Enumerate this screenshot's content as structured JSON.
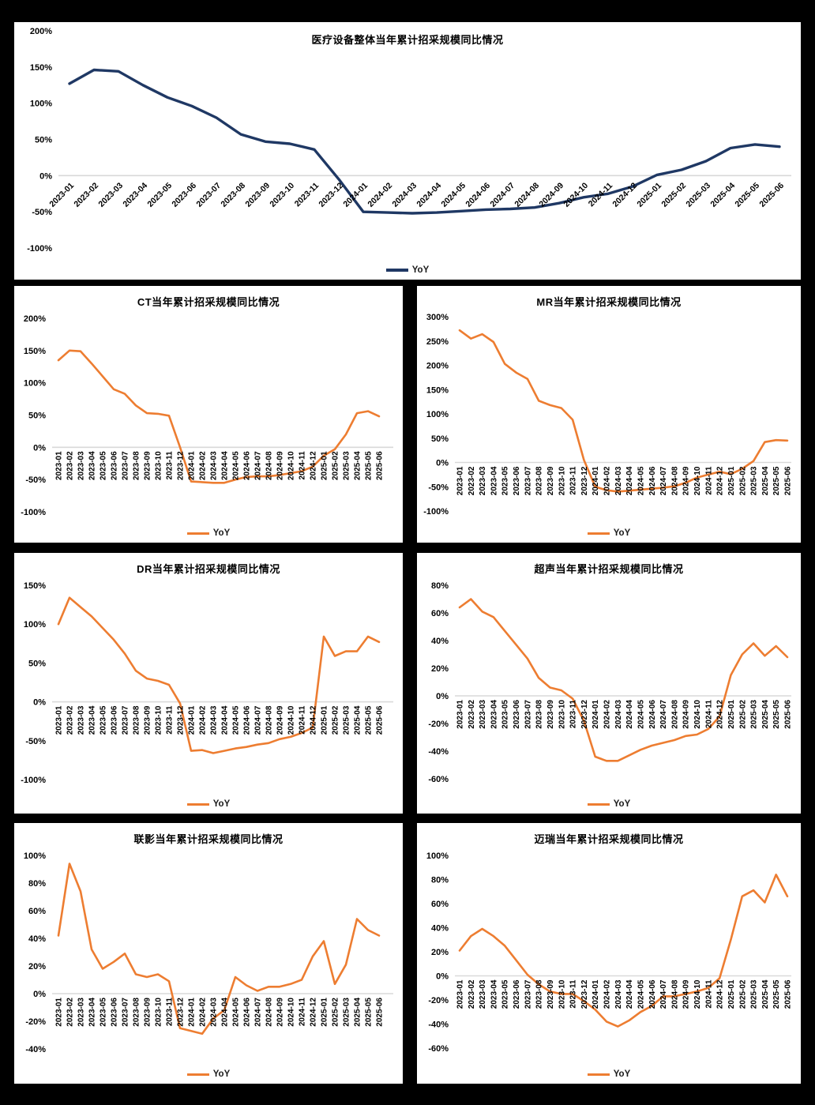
{
  "colors": {
    "page_background": "#000000",
    "panel_background": "#ffffff",
    "navy_line": "#1f3864",
    "orange_line": "#ed7d31",
    "gridline": "#d9d9d9",
    "text": "#000000"
  },
  "legend_label": "YoY",
  "chart_data": [
    {
      "type": "line",
      "title": "医疗设备整体当年累计招采规模同比情况",
      "legend_position": "bottom",
      "grid": "zero-line-only",
      "line_color": "#1f3864",
      "ylim": [
        -100,
        200
      ],
      "yticks": [
        200,
        150,
        100,
        50,
        0,
        -50,
        -100
      ],
      "ytick_suffix": "%",
      "categories": [
        "2023-01",
        "2023-02",
        "2023-03",
        "2023-04",
        "2023-05",
        "2023-06",
        "2023-07",
        "2023-08",
        "2023-09",
        "2023-10",
        "2023-11",
        "2023-12",
        "2024-01",
        "2024-02",
        "2024-03",
        "2024-04",
        "2024-05",
        "2024-06",
        "2024-07",
        "2024-08",
        "2024-09",
        "2024-10",
        "2024-11",
        "2024-12",
        "2025-01",
        "2025-02",
        "2025-03",
        "2025-04",
        "2025-05",
        "2025-06"
      ],
      "series": [
        {
          "name": "YoY",
          "values": [
            127,
            146,
            144,
            125,
            108,
            96,
            80,
            57,
            47,
            44,
            36,
            -5,
            -50,
            -51,
            -52,
            -51,
            -49,
            -47,
            -46,
            -44,
            -38,
            -30,
            -25,
            -15,
            1,
            8,
            20,
            38,
            43,
            40
          ]
        }
      ]
    },
    {
      "type": "line",
      "title": "CT当年累计招采规模同比情况",
      "legend_position": "bottom",
      "grid": "zero-line-only",
      "line_color": "#ed7d31",
      "ylim": [
        -100,
        200
      ],
      "yticks": [
        200,
        150,
        100,
        50,
        0,
        -50,
        -100
      ],
      "ytick_suffix": "%",
      "categories": [
        "2023-01",
        "2023-02",
        "2023-03",
        "2023-04",
        "2023-05",
        "2023-06",
        "2023-07",
        "2023-08",
        "2023-09",
        "2023-10",
        "2023-11",
        "2023-12",
        "2024-01",
        "2024-02",
        "2024-03",
        "2024-04",
        "2024-05",
        "2024-06",
        "2024-07",
        "2024-08",
        "2024-09",
        "2024-10",
        "2024-11",
        "2024-12",
        "2025-01",
        "2025-02",
        "2025-03",
        "2025-04",
        "2025-05",
        "2025-06"
      ],
      "series": [
        {
          "name": "YoY",
          "values": [
            135,
            150,
            149,
            130,
            110,
            90,
            83,
            65,
            53,
            52,
            49,
            0,
            -53,
            -54,
            -55,
            -55,
            -50,
            -46,
            -45,
            -45,
            -43,
            -40,
            -37,
            -30,
            -13,
            -3,
            20,
            53,
            56,
            48
          ]
        }
      ]
    },
    {
      "type": "line",
      "title": "MR当年累计招采规模同比情况",
      "legend_position": "bottom",
      "grid": "zero-line-only",
      "line_color": "#ed7d31",
      "ylim": [
        -100,
        300
      ],
      "yticks": [
        300,
        250,
        200,
        150,
        100,
        50,
        0,
        -50,
        -100
      ],
      "ytick_suffix": "%",
      "categories": [
        "2023-01",
        "2023-02",
        "2023-03",
        "2023-04",
        "2023-05",
        "2023-06",
        "2023-07",
        "2023-08",
        "2023-09",
        "2023-10",
        "2023-11",
        "2023-12",
        "2024-01",
        "2024-02",
        "2024-03",
        "2024-04",
        "2024-05",
        "2024-06",
        "2024-07",
        "2024-08",
        "2024-09",
        "2024-10",
        "2024-11",
        "2024-12",
        "2025-01",
        "2025-02",
        "2025-03",
        "2025-04",
        "2025-05",
        "2025-06"
      ],
      "series": [
        {
          "name": "YoY",
          "values": [
            272,
            255,
            264,
            248,
            203,
            185,
            172,
            127,
            118,
            112,
            88,
            5,
            -50,
            -57,
            -60,
            -58,
            -56,
            -54,
            -52,
            -49,
            -42,
            -31,
            -25,
            -19,
            -24,
            -13,
            3,
            42,
            46,
            45
          ]
        }
      ]
    },
    {
      "type": "line",
      "title": "DR当年累计招采规模同比情况",
      "legend_position": "bottom",
      "grid": "zero-line-only",
      "line_color": "#ed7d31",
      "ylim": [
        -100,
        150
      ],
      "yticks": [
        150,
        100,
        50,
        0,
        -50,
        -100
      ],
      "ytick_suffix": "%",
      "categories": [
        "2023-01",
        "2023-02",
        "2023-03",
        "2023-04",
        "2023-05",
        "2023-06",
        "2023-07",
        "2023-08",
        "2023-09",
        "2023-10",
        "2023-11",
        "2023-12",
        "2024-01",
        "2024-02",
        "2024-03",
        "2024-04",
        "2024-05",
        "2024-06",
        "2024-07",
        "2024-08",
        "2024-09",
        "2024-10",
        "2024-11",
        "2024-12",
        "2025-01",
        "2025-02",
        "2025-03",
        "2025-04",
        "2025-05",
        "2025-06"
      ],
      "series": [
        {
          "name": "YoY",
          "values": [
            100,
            134,
            122,
            110,
            95,
            80,
            62,
            40,
            30,
            27,
            22,
            -2,
            -63,
            -62,
            -66,
            -63,
            -60,
            -58,
            -55,
            -53,
            -48,
            -45,
            -40,
            -33,
            84,
            59,
            65,
            65,
            84,
            77
          ]
        }
      ]
    },
    {
      "type": "line",
      "title": "超声当年累计招采规模同比情况",
      "legend_position": "bottom",
      "grid": "zero-line-only",
      "line_color": "#ed7d31",
      "ylim": [
        -60,
        80
      ],
      "yticks": [
        80,
        60,
        40,
        20,
        0,
        -20,
        -40,
        -60
      ],
      "ytick_suffix": "%",
      "categories": [
        "2023-01",
        "2023-02",
        "2023-03",
        "2023-04",
        "2023-05",
        "2023-06",
        "2023-07",
        "2023-08",
        "2023-09",
        "2023-10",
        "2023-11",
        "2023-12",
        "2024-01",
        "2024-02",
        "2024-03",
        "2024-04",
        "2024-05",
        "2024-06",
        "2024-07",
        "2024-08",
        "2024-09",
        "2024-10",
        "2024-11",
        "2024-12",
        "2025-01",
        "2025-02",
        "2025-03",
        "2025-04",
        "2025-05",
        "2025-06"
      ],
      "series": [
        {
          "name": "YoY",
          "values": [
            64,
            70,
            61,
            57,
            47,
            37,
            27,
            13,
            6,
            4,
            -2,
            -18,
            -44,
            -47,
            -47,
            -43,
            -39,
            -36,
            -34,
            -32,
            -29,
            -28,
            -24,
            -15,
            15,
            30,
            38,
            29,
            36,
            28
          ]
        }
      ]
    },
    {
      "type": "line",
      "title": "联影当年累计招采规模同比情况",
      "legend_position": "bottom",
      "grid": "zero-line-only",
      "line_color": "#ed7d31",
      "ylim": [
        -40,
        100
      ],
      "yticks": [
        100,
        80,
        60,
        40,
        20,
        0,
        -20,
        -40
      ],
      "ytick_suffix": "%",
      "categories": [
        "2023-01",
        "2023-02",
        "2023-03",
        "2023-04",
        "2023-05",
        "2023-06",
        "2023-07",
        "2023-08",
        "2023-09",
        "2023-10",
        "2023-11",
        "2023-12",
        "2024-01",
        "2024-02",
        "2024-03",
        "2024-04",
        "2024-05",
        "2024-06",
        "2024-07",
        "2024-08",
        "2024-09",
        "2024-10",
        "2024-11",
        "2024-12",
        "2025-01",
        "2025-02",
        "2025-03",
        "2025-04",
        "2025-05",
        "2025-06"
      ],
      "series": [
        {
          "name": "YoY",
          "values": [
            42,
            94,
            74,
            32,
            18,
            23,
            29,
            14,
            12,
            14,
            9,
            -25,
            -27,
            -29,
            -18,
            -12,
            12,
            6,
            2,
            5,
            5,
            7,
            10,
            27,
            38,
            7,
            21,
            54,
            46,
            42
          ]
        }
      ]
    },
    {
      "type": "line",
      "title": "迈瑞当年累计招采规模同比情况",
      "legend_position": "bottom",
      "grid": "zero-line-only",
      "line_color": "#ed7d31",
      "ylim": [
        -60,
        100
      ],
      "yticks": [
        100,
        80,
        60,
        40,
        20,
        0,
        -20,
        -40,
        -60
      ],
      "ytick_suffix": "%",
      "categories": [
        "2023-01",
        "2023-02",
        "2023-03",
        "2023-04",
        "2023-05",
        "2023-06",
        "2023-07",
        "2023-08",
        "2023-09",
        "2023-10",
        "2023-11",
        "2023-12",
        "2024-01",
        "2024-02",
        "2024-03",
        "2024-04",
        "2024-05",
        "2024-06",
        "2024-07",
        "2024-08",
        "2024-09",
        "2024-10",
        "2024-11",
        "2024-12",
        "2025-01",
        "2025-02",
        "2025-03",
        "2025-04",
        "2025-05",
        "2025-06"
      ],
      "series": [
        {
          "name": "YoY",
          "values": [
            21,
            33,
            39,
            33,
            25,
            13,
            1,
            -7,
            -13,
            -15,
            -15,
            -21,
            -28,
            -38,
            -42,
            -37,
            -30,
            -25,
            -17,
            -17,
            -15,
            -13,
            -10,
            -2,
            30,
            66,
            71,
            61,
            84,
            66
          ]
        }
      ]
    }
  ]
}
